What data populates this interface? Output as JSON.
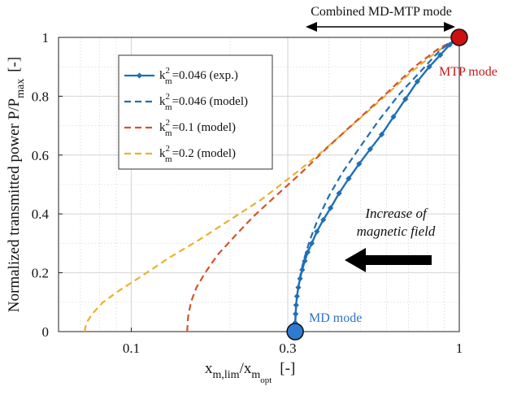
{
  "chart_data": {
    "type": "line",
    "xlabel": "x_{m,lim}/x_{m_opt} [-]",
    "xlabel_parts": {
      "main": "x",
      "sub1": "m,lim",
      "slash": "/x",
      "sub2": "m",
      "subsub2": "opt",
      "unit": "[-]"
    },
    "ylabel": "Normalized transmitted power P/P_max [-]",
    "ylabel_parts": {
      "main": "Normalized transmitted power P/P",
      "sub": "max",
      "unit": "[-]"
    },
    "xscale": "log",
    "xlim": [
      0.06,
      1.0
    ],
    "ylim": [
      0,
      1
    ],
    "xticks": [
      0.1,
      0.3,
      1
    ],
    "xtick_labels": [
      "0.1",
      "0.3",
      "1"
    ],
    "yticks": [
      0,
      0.2,
      0.4,
      0.6,
      0.8,
      1
    ],
    "ytick_labels": [
      "0",
      "0.2",
      "0.4",
      "0.6",
      "0.8",
      "1"
    ],
    "grid": true,
    "legend_position": "top-left",
    "series": [
      {
        "name": "k_m^2=0.046 (exp.)",
        "legend": {
          "k": "k",
          "sup": "2",
          "sub": "m",
          "rest": "=0.046 (exp.)"
        },
        "color": "#1f6fb5",
        "style": "solid-marker",
        "x": [
          0.316,
          0.316,
          0.317,
          0.318,
          0.32,
          0.323,
          0.327,
          0.332,
          0.338,
          0.345,
          0.355,
          0.368,
          0.385,
          0.405,
          0.43,
          0.46,
          0.495,
          0.535,
          0.58,
          0.63,
          0.685,
          0.745,
          0.81,
          0.875,
          0.935,
          0.975,
          1.0
        ],
        "y": [
          0.0,
          0.03,
          0.06,
          0.09,
          0.12,
          0.15,
          0.18,
          0.21,
          0.24,
          0.27,
          0.3,
          0.34,
          0.38,
          0.42,
          0.47,
          0.52,
          0.57,
          0.62,
          0.67,
          0.73,
          0.79,
          0.85,
          0.9,
          0.94,
          0.975,
          0.99,
          1.0
        ]
      },
      {
        "name": "k_m^2=0.046 (model)",
        "legend": {
          "k": "k",
          "sup": "2",
          "sub": "m",
          "rest": "=0.046 (model)"
        },
        "color": "#1f6fb5",
        "style": "dashed",
        "x": [
          0.316,
          0.317,
          0.32,
          0.326,
          0.335,
          0.35,
          0.37,
          0.4,
          0.44,
          0.5,
          0.57,
          0.66,
          0.77,
          0.88,
          1.0
        ],
        "y": [
          0.0,
          0.06,
          0.12,
          0.18,
          0.24,
          0.31,
          0.38,
          0.46,
          0.54,
          0.63,
          0.72,
          0.81,
          0.89,
          0.96,
          1.0
        ]
      },
      {
        "name": "k_m^2=0.1 (model)",
        "legend": {
          "k": "k",
          "sup": "2",
          "sub": "m",
          "rest": "=0.1 (model)"
        },
        "color": "#d4532a",
        "style": "dashed",
        "x": [
          0.148,
          0.149,
          0.152,
          0.158,
          0.168,
          0.183,
          0.205,
          0.235,
          0.275,
          0.33,
          0.4,
          0.49,
          0.6,
          0.73,
          0.86,
          1.0
        ],
        "y": [
          0.0,
          0.05,
          0.1,
          0.15,
          0.2,
          0.26,
          0.32,
          0.39,
          0.46,
          0.54,
          0.63,
          0.72,
          0.81,
          0.9,
          0.96,
          1.0
        ]
      },
      {
        "name": "k_m^2=0.2 (model)",
        "legend": {
          "k": "k",
          "sup": "2",
          "sub": "m",
          "rest": "=0.2 (model)"
        },
        "color": "#e8b22e",
        "style": "dashed",
        "x": [
          0.072,
          0.073,
          0.076,
          0.082,
          0.092,
          0.108,
          0.13,
          0.16,
          0.2,
          0.25,
          0.31,
          0.38,
          0.47,
          0.58,
          0.71,
          0.85,
          1.0
        ],
        "y": [
          0.0,
          0.03,
          0.06,
          0.1,
          0.14,
          0.19,
          0.25,
          0.31,
          0.38,
          0.45,
          0.53,
          0.61,
          0.7,
          0.79,
          0.88,
          0.95,
          1.0
        ]
      }
    ],
    "annotations": {
      "combined": "Combined MD-MTP mode",
      "mtp": "MTP mode",
      "md": "MD mode",
      "increase_line1": "Increase of",
      "increase_line2": "magnetic field"
    },
    "colors": {
      "mtp_point": "#cc1111",
      "md_point": "#2f7bd0",
      "mtp_text": "#c41a1a",
      "md_text": "#2f73c4",
      "arrow": "#000000"
    },
    "markers": {
      "mtp_point": {
        "x": 1.0,
        "y": 1.0
      },
      "md_point": {
        "x": 0.316,
        "y": 0.0
      }
    }
  }
}
